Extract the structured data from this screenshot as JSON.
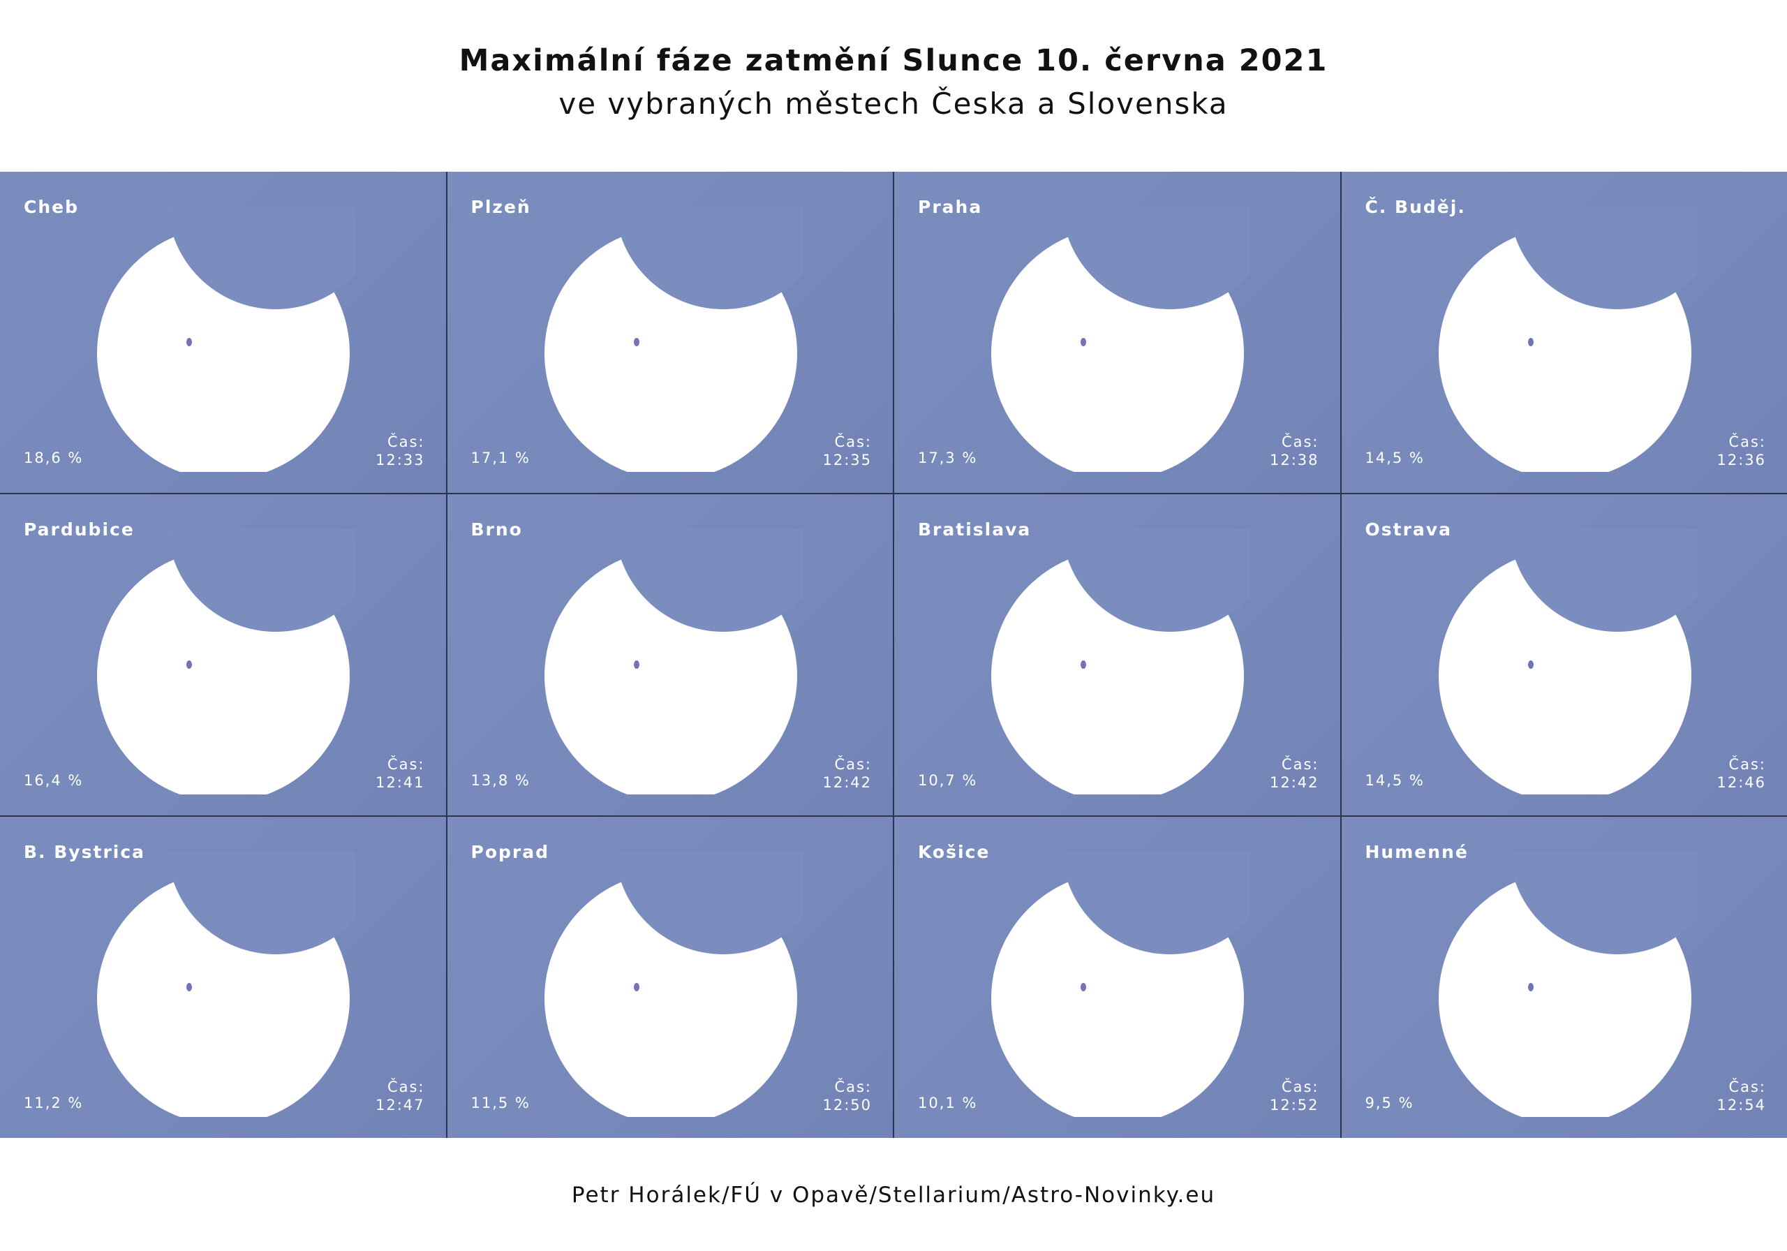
{
  "title": "Maximální fáze zatmění Slunce 10. června 2021",
  "subtitle": "ve vybraných městech Česka a Slovenska",
  "time_label": "Čas:",
  "credit": "Petr Horálek/FÚ v Opavě/Stellarium/Astro-Novinky.eu",
  "colors": {
    "panel": "#7b8cbe",
    "sun": "#ffffff",
    "grid_line": "#2b3350"
  },
  "panels": [
    {
      "city": "Cheb",
      "percent": "18,6 %",
      "time": "12:33"
    },
    {
      "city": "Plzeň",
      "percent": "17,1 %",
      "time": "12:35"
    },
    {
      "city": "Praha",
      "percent": "17,3 %",
      "time": "12:38"
    },
    {
      "city": "Č. Buděj.",
      "percent": "14,5 %",
      "time": "12:36"
    },
    {
      "city": "Pardubice",
      "percent": "16,4 %",
      "time": "12:41"
    },
    {
      "city": "Brno",
      "percent": "13,8 %",
      "time": "12:42"
    },
    {
      "city": "Bratislava",
      "percent": "10,7 %",
      "time": "12:42"
    },
    {
      "city": "Ostrava",
      "percent": "14,5 %",
      "time": "12:46"
    },
    {
      "city": "B. Bystrica",
      "percent": "11,2 %",
      "time": "12:47"
    },
    {
      "city": "Poprad",
      "percent": "11,5 %",
      "time": "12:50"
    },
    {
      "city": "Košice",
      "percent": "10,1 %",
      "time": "12:52"
    },
    {
      "city": "Humenné",
      "percent": "9,5 %",
      "time": "12:54"
    }
  ]
}
